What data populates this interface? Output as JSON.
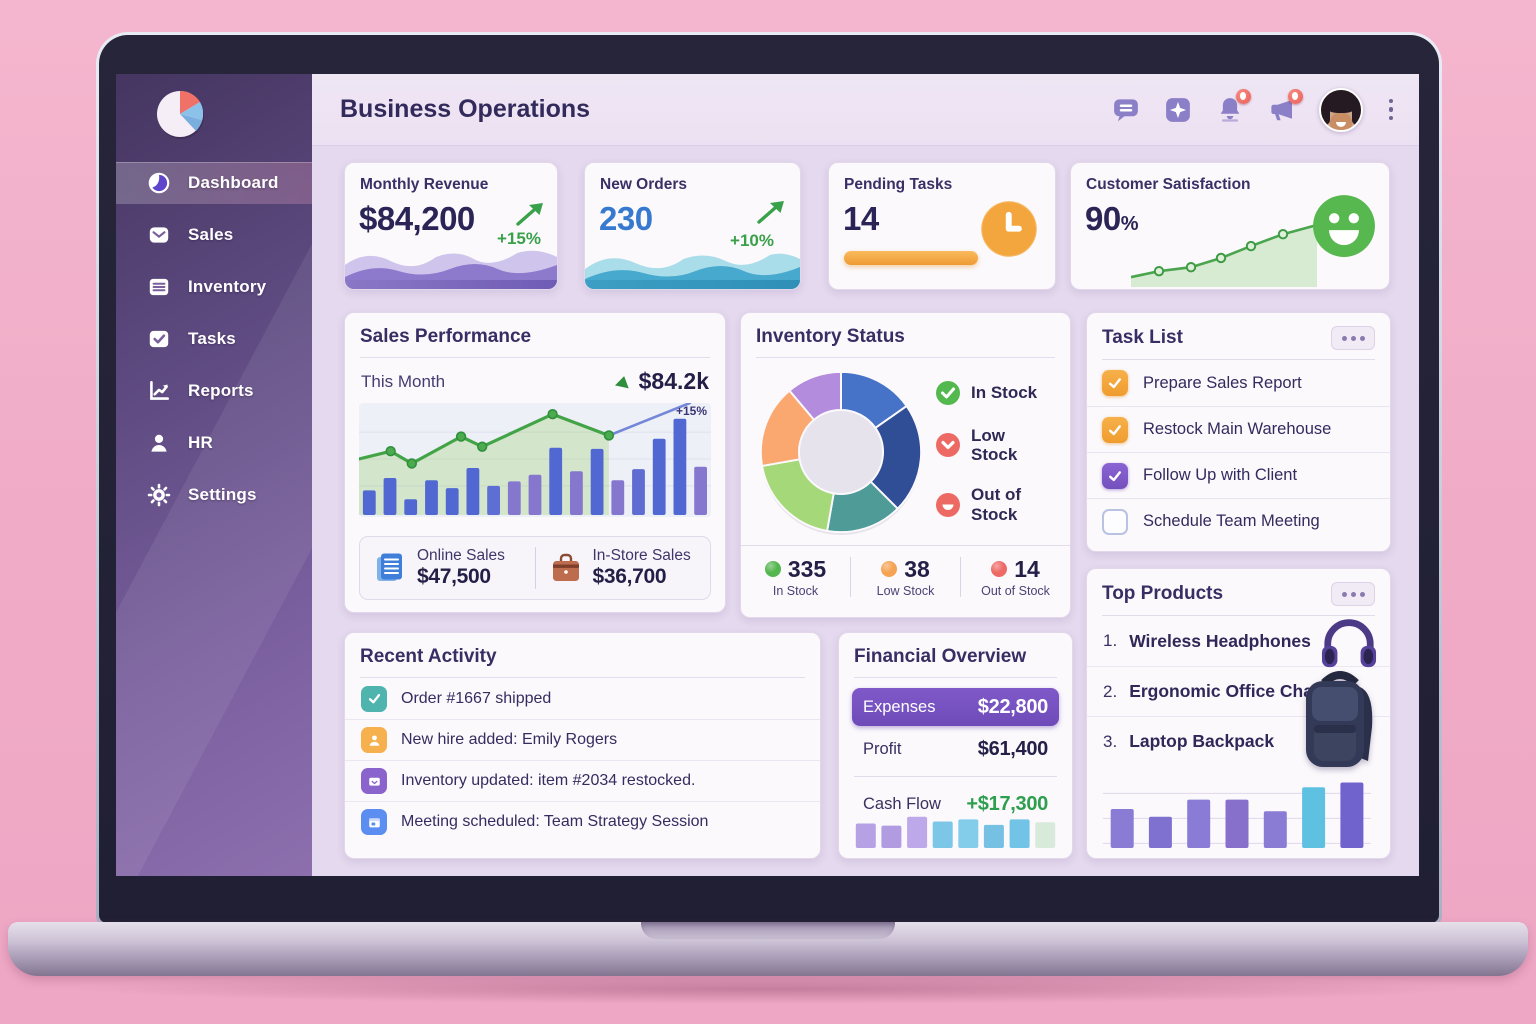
{
  "header": {
    "title": "Business Operations",
    "icons": [
      {
        "name": "messages-icon",
        "badge": false
      },
      {
        "name": "apps-icon",
        "badge": false
      },
      {
        "name": "notifications-bell-icon",
        "badge": true
      },
      {
        "name": "announcements-icon",
        "badge": true
      }
    ]
  },
  "sidebar": {
    "items": [
      {
        "label": "Dashboard",
        "icon": "dashboard-icon",
        "active": true
      },
      {
        "label": "Sales",
        "icon": "mail-icon",
        "active": false
      },
      {
        "label": "Inventory",
        "icon": "list-icon",
        "active": false
      },
      {
        "label": "Tasks",
        "icon": "check-square-icon",
        "active": false
      },
      {
        "label": "Reports",
        "icon": "line-chart-icon",
        "active": false
      },
      {
        "label": "HR",
        "icon": "person-icon",
        "active": false
      },
      {
        "label": "Settings",
        "icon": "gear-icon",
        "active": false
      }
    ]
  },
  "kpis": [
    {
      "label": "Monthly Revenue",
      "value": "$84,200",
      "delta": "+15%",
      "accent": "#7e6bbd"
    },
    {
      "label": "New Orders",
      "value": "230",
      "delta": "+10%",
      "accent": "#3d9fc4"
    },
    {
      "label": "Pending Tasks",
      "value": "14",
      "accent": "#f4a63e"
    },
    {
      "label": "Customer Satisfaction",
      "value": "90",
      "unit": "%",
      "accent": "#56b84e",
      "spark": [
        [
          0,
          85
        ],
        [
          14,
          76
        ],
        [
          30,
          70
        ],
        [
          45,
          56
        ],
        [
          60,
          38
        ],
        [
          76,
          20
        ],
        [
          93,
          6
        ]
      ]
    }
  ],
  "sales_performance": {
    "title": "Sales Performance",
    "period_label": "This Month",
    "period_value": "$84.2k",
    "annotation": "+15%",
    "online_sales_label": "Online Sales",
    "online_sales_value": "$47,500",
    "instore_sales_label": "In-Store Sales",
    "instore_sales_value": "$36,700",
    "chart_data": {
      "type": "bar+line",
      "bars": [
        22,
        33,
        14,
        31,
        24,
        42,
        26,
        30,
        36,
        60,
        39,
        59,
        31,
        41,
        68,
        86,
        43
      ],
      "bar_colors": [
        "#5168d2",
        "#5168d2",
        "#5168d2",
        "#5168d2",
        "#5168d2",
        "#5168d2",
        "#5d6fd4",
        "#8577cd",
        "#8577cd",
        "#5168d2",
        "#8577cd",
        "#5168d2",
        "#8577cd",
        "#5f6cd2",
        "#5168d2",
        "#5168d2",
        "#8577cd"
      ],
      "line_green": [
        [
          0,
          50
        ],
        [
          9,
          43
        ],
        [
          15,
          54
        ],
        [
          29,
          30
        ],
        [
          35,
          39
        ],
        [
          55,
          10
        ],
        [
          71,
          29
        ]
      ],
      "line_blue": [
        [
          71,
          29
        ],
        [
          94,
          0
        ]
      ],
      "line_green_color": "#43a447",
      "line_blue_color": "#7487d8",
      "grid": true
    }
  },
  "inventory_status": {
    "title": "Inventory Status",
    "legend": [
      "In Stock",
      "Low Stock",
      "Out of Stock"
    ],
    "chart_data": {
      "type": "donut",
      "segments": [
        {
          "angle": 55,
          "color": "#4673c8"
        },
        {
          "angle": 80,
          "color": "#2f4e96"
        },
        {
          "angle": 55,
          "color": "#4e9b98"
        },
        {
          "angle": 70,
          "color": "#a5d878"
        },
        {
          "angle": 60,
          "color": "#faa86f"
        },
        {
          "angle": 40,
          "color": "#b48cde"
        }
      ]
    },
    "stats": [
      {
        "value": "335",
        "label": "In Stock",
        "color": "#54b64f"
      },
      {
        "value": "38",
        "label": "Low Stock",
        "color": "#f5a353"
      },
      {
        "value": "14",
        "label": "Out of Stock",
        "color": "#ee6a66"
      }
    ]
  },
  "task_list": {
    "title": "Task List",
    "tasks": [
      {
        "label": "Prepare Sales Report",
        "state": "checked-orange"
      },
      {
        "label": "Restock Main Warehouse",
        "state": "checked-orange"
      },
      {
        "label": "Follow Up with Client",
        "state": "checked-purple"
      },
      {
        "label": "Schedule Team Meeting",
        "state": "unchecked"
      }
    ]
  },
  "recent_activity": {
    "title": "Recent Activity",
    "items": [
      {
        "text": "Order #1667 shipped",
        "icon": "check-icon",
        "color": "#4fb3ae"
      },
      {
        "text": "New hire added: Emily Rogers",
        "icon": "person-icon",
        "color": "#f6b04e"
      },
      {
        "text": "Inventory updated: item #2034 restocked.",
        "icon": "box-icon",
        "color": "#8a63cc"
      },
      {
        "text": "Meeting scheduled: Team Strategy Session",
        "icon": "calendar-icon",
        "color": "#5b8ef0"
      }
    ]
  },
  "financial_overview": {
    "title": "Financial Overview",
    "rows": [
      {
        "label": "Expenses",
        "value": "$22,800",
        "highlight": true
      },
      {
        "label": "Profit",
        "value": "$61,400",
        "highlight": false
      },
      {
        "label": "Cash Flow",
        "value": "+$17,300",
        "positive": true
      }
    ],
    "chart_data": {
      "type": "bar",
      "values": [
        72,
        66,
        92,
        78,
        84,
        68,
        84,
        76
      ],
      "colors": [
        "#b5a1e4",
        "#b19ce2",
        "#bda8ea",
        "#7cc6e8",
        "#83cdea",
        "#76c0e4",
        "#72c4e6",
        "#d8ebdb"
      ]
    }
  },
  "top_products": {
    "title": "Top Products",
    "items": [
      {
        "rank": "1.",
        "name": "Wireless Headphones"
      },
      {
        "rank": "2.",
        "name": "Ergonomic Office Chair"
      },
      {
        "rank": "3.",
        "name": "Laptop Backpack"
      }
    ],
    "chart_data": {
      "type": "bar",
      "values": [
        50,
        40,
        62,
        62,
        47,
        78,
        84
      ],
      "colors": [
        "#8a7bd4",
        "#7f71d0",
        "#8a7bd6",
        "#8770cc",
        "#8a7bd4",
        "#5ec1e2",
        "#7163cd"
      ]
    }
  }
}
